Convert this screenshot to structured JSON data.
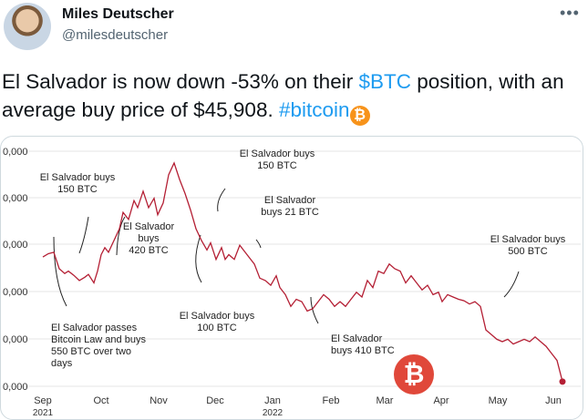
{
  "tweet": {
    "author_name": "Miles Deutscher",
    "author_handle": "@milesdeutscher",
    "more_icon": "more-horizontal-icon",
    "text_part1": "El Salvador is now down -53% on their ",
    "cashtag": "$BTC",
    "text_part2": " position, with an average buy price of $45,908. ",
    "hashtag": "#bitcoin",
    "emoji": "₿"
  },
  "chart_data": {
    "type": "line",
    "title": "",
    "y_tick_labels": [
      "0,000",
      "0,000",
      "0,000",
      "0,000",
      "0,000",
      "0,000"
    ],
    "x_tick_labels": [
      "Sep",
      "Oct",
      "Nov",
      "Dec",
      "Jan",
      "Feb",
      "Mar",
      "Apr",
      "May",
      "Jun"
    ],
    "x_sub_labels": [
      "2021",
      "2022"
    ],
    "annotations": [
      {
        "lines": [
          "El Salvador buys",
          "150 BTC"
        ]
      },
      {
        "lines": [
          "El Salvador",
          "buys",
          "420 BTC"
        ]
      },
      {
        "lines": [
          "El Salvador buys",
          "150 BTC"
        ]
      },
      {
        "lines": [
          "El Salvador",
          "buys 21 BTC"
        ]
      },
      {
        "lines": [
          "El Salvador buys",
          "500 BTC"
        ]
      },
      {
        "lines": [
          "El Salvador passes",
          "Bitcoin Law and buys",
          "550 BTC over two",
          "days"
        ]
      },
      {
        "lines": [
          "El Salvador buys",
          "100 BTC"
        ]
      },
      {
        "lines": [
          "El Salvador",
          "buys 410 BTC"
        ]
      }
    ],
    "series": [
      {
        "x": [
          0,
          3,
          6,
          9,
          12,
          14,
          17,
          20,
          23,
          25,
          28,
          30,
          32,
          34,
          36,
          39,
          42,
          44,
          47,
          50,
          52,
          55,
          58,
          61,
          63,
          66,
          69,
          72,
          75,
          78,
          81,
          84,
          87,
          90,
          92,
          95,
          98,
          100,
          102,
          105,
          108,
          110,
          113,
          116,
          119,
          122,
          125,
          128,
          130,
          133,
          136,
          139,
          142,
          145,
          148,
          151,
          154,
          157,
          160,
          163,
          166,
          169,
          172,
          175,
          178,
          181,
          184,
          187,
          190,
          193,
          196,
          199,
          202,
          205,
          208,
          211,
          214,
          217,
          219,
          222,
          225,
          228,
          231,
          234,
          237,
          240,
          243,
          246,
          249,
          252,
          255,
          258,
          261,
          264,
          267,
          270,
          273,
          276,
          279,
          282,
          285
        ],
        "y": [
          47.5,
          48.2,
          48.5,
          45.0,
          44.0,
          44.5,
          43.6,
          42.5,
          43.2,
          43.8,
          42.0,
          44.5,
          48.0,
          49.5,
          48.5,
          51.0,
          53.5,
          57.0,
          55.5,
          59.5,
          58.0,
          61.5,
          58.0,
          60.0,
          56.5,
          59.0,
          65.0,
          67.5,
          64.0,
          61.0,
          57.5,
          53.5,
          51.0,
          49.0,
          50.5,
          47.0,
          49.5,
          47.0,
          48.0,
          47.0,
          50.0,
          49.0,
          47.5,
          46.0,
          43.0,
          42.5,
          41.5,
          43.5,
          41.0,
          39.5,
          37.0,
          38.5,
          38.0,
          36.0,
          36.5,
          38.0,
          39.5,
          38.5,
          37.0,
          38.0,
          37.0,
          38.5,
          40.0,
          39.0,
          42.5,
          41.0,
          44.5,
          44.0,
          46.0,
          45.0,
          44.5,
          42.0,
          43.5,
          42.0,
          40.5,
          41.5,
          39.5,
          40.0,
          38.0,
          39.5,
          39.0,
          38.5,
          38.2,
          37.5,
          38.0,
          37.0,
          32.0,
          31.0,
          30.0,
          29.5,
          30.0,
          29.0,
          29.5,
          30.0,
          29.5,
          30.5,
          29.5,
          28.5,
          27.0,
          25.5,
          21.0
        ]
      }
    ]
  }
}
